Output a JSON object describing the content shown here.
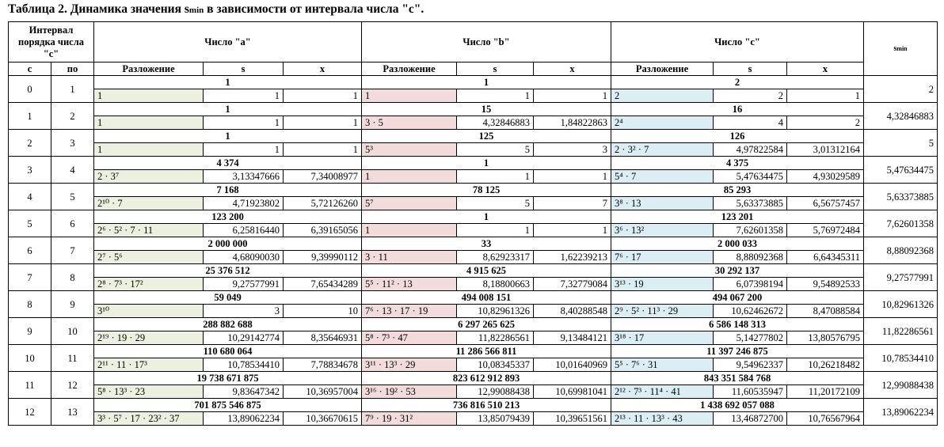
{
  "caption": {
    "main": "Таблица 2. Динамика значения s",
    "sub": "min",
    "rest": " в зависимости от интервала числа \"c\"."
  },
  "headers": {
    "interval": "Интервал порядка числа \"c\"",
    "num_a": "Число \"a\"",
    "num_b": "Число \"b\"",
    "num_c": "Число \"c\"",
    "smin_main": "s",
    "smin_sub": "min",
    "c": "c",
    "po": "по",
    "decomp": "Разложение",
    "s": "s",
    "x": "x"
  },
  "rows": [
    {
      "c": "0",
      "po": "1",
      "a": {
        "v": "1",
        "d": "1",
        "s": "1",
        "x": "1"
      },
      "b": {
        "v": "1",
        "d": "1",
        "s": "1",
        "x": "1"
      },
      "cc": {
        "v": "2",
        "d": "2",
        "s": "2",
        "x": "1"
      },
      "smin": "2"
    },
    {
      "c": "1",
      "po": "2",
      "a": {
        "v": "1",
        "d": "1",
        "s": "1",
        "x": "1"
      },
      "b": {
        "v": "15",
        "d": "3 · 5",
        "s": "4,32846883",
        "x": "1,84822863"
      },
      "cc": {
        "v": "16",
        "d": "2⁴",
        "s": "4",
        "x": "2"
      },
      "smin": "4,32846883"
    },
    {
      "c": "2",
      "po": "3",
      "a": {
        "v": "1",
        "d": "1",
        "s": "1",
        "x": "1"
      },
      "b": {
        "v": "125",
        "d": "5³",
        "s": "5",
        "x": "3"
      },
      "cc": {
        "v": "126",
        "d": "2 · 3² · 7",
        "s": "4,97822584",
        "x": "3,01312164"
      },
      "smin": "5"
    },
    {
      "c": "3",
      "po": "4",
      "a": {
        "v": "4 374",
        "d": "2 · 3⁷",
        "s": "3,13347666",
        "x": "7,34008977"
      },
      "b": {
        "v": "1",
        "d": "1",
        "s": "1",
        "x": "1"
      },
      "cc": {
        "v": "4 375",
        "d": "5⁴ · 7",
        "s": "5,47634475",
        "x": "4,93029589"
      },
      "smin": "5,47634475"
    },
    {
      "c": "4",
      "po": "5",
      "a": {
        "v": "7 168",
        "d": "2¹⁰ · 7",
        "s": "4,71923802",
        "x": "5,72126260"
      },
      "b": {
        "v": "78 125",
        "d": "5⁷",
        "s": "5",
        "x": "7"
      },
      "cc": {
        "v": "85 293",
        "d": "3⁸ · 13",
        "s": "5,63373885",
        "x": "6,56757457"
      },
      "smin": "5,63373885"
    },
    {
      "c": "5",
      "po": "6",
      "a": {
        "v": "123 200",
        "d": "2⁶ · 5² · 7 · 11",
        "s": "6,25816440",
        "x": "6,39165056"
      },
      "b": {
        "v": "1",
        "d": "1",
        "s": "1",
        "x": "1"
      },
      "cc": {
        "v": "123 201",
        "d": "3⁶ · 13²",
        "s": "7,62601358",
        "x": "5,76972484"
      },
      "smin": "7,62601358"
    },
    {
      "c": "6",
      "po": "7",
      "a": {
        "v": "2 000 000",
        "d": "2⁷ · 5⁶",
        "s": "4,68090030",
        "x": "9,39990112"
      },
      "b": {
        "v": "33",
        "d": "3 · 11",
        "s": "8,62923317",
        "x": "1,62239213"
      },
      "cc": {
        "v": "2 000 033",
        "d": "7⁶ · 17",
        "s": "8,88092368",
        "x": "6,64345311"
      },
      "smin": "8,88092368"
    },
    {
      "c": "7",
      "po": "8",
      "a": {
        "v": "25 376 512",
        "d": "2⁸ · 7³ · 17²",
        "s": "9,27577991",
        "x": "7,65434289"
      },
      "b": {
        "v": "4 915 625",
        "d": "5⁵ · 11² · 13",
        "s": "8,18800663",
        "x": "7,32779084"
      },
      "cc": {
        "v": "30 292 137",
        "d": "3¹³ · 19",
        "s": "6,07398194",
        "x": "9,54892533"
      },
      "smin": "9,27577991"
    },
    {
      "c": "8",
      "po": "9",
      "a": {
        "v": "59 049",
        "d": "3¹⁰",
        "s": "3",
        "x": "10"
      },
      "b": {
        "v": "494 008 151",
        "d": "7⁶ · 13 · 17 · 19",
        "s": "10,82961326",
        "x": "8,40288548"
      },
      "cc": {
        "v": "494 067 200",
        "d": "2⁹ · 5² · 11³ · 29",
        "s": "10,62462672",
        "x": "8,47088584"
      },
      "smin": "10,82961326"
    },
    {
      "c": "9",
      "po": "10",
      "a": {
        "v": "288 882 688",
        "d": "2¹⁹ · 19 · 29",
        "s": "10,29142774",
        "x": "8,35646931"
      },
      "b": {
        "v": "6 297 265 625",
        "d": "5⁸ · 7³ · 47",
        "s": "11,82286561",
        "x": "9,13484121"
      },
      "cc": {
        "v": "6 586 148 313",
        "d": "3¹⁸ · 17",
        "s": "5,14277802",
        "x": "13,80576795"
      },
      "smin": "11,82286561"
    },
    {
      "c": "10",
      "po": "11",
      "a": {
        "v": "110 680 064",
        "d": "2¹¹ · 11 · 17³",
        "s": "10,78534410",
        "x": "7,78834678"
      },
      "b": {
        "v": "11 286 566 811",
        "d": "3¹¹ · 13³ · 29",
        "s": "10,08345337",
        "x": "10,01640969"
      },
      "cc": {
        "v": "11 397 246 875",
        "d": "5⁵ · 7⁶ · 31",
        "s": "9,54962337",
        "x": "10,26218482"
      },
      "smin": "10,78534410"
    },
    {
      "c": "11",
      "po": "12",
      "a": {
        "v": "19 738 671 875",
        "d": "5⁸ · 13³ · 23",
        "s": "9,83647342",
        "x": "10,36957004"
      },
      "b": {
        "v": "823 612 912 893",
        "d": "3¹⁶ · 19² · 53",
        "s": "12,99088438",
        "x": "10,69981041"
      },
      "cc": {
        "v": "843 351 584 768",
        "d": "2¹² · 7³ · 11⁴ · 41",
        "s": "11,60535947",
        "x": "11,20172109"
      },
      "smin": "12,99088438"
    },
    {
      "c": "12",
      "po": "13",
      "a": {
        "v": "701 875 546 875",
        "d": "3³ · 5⁷ · 17 · 23² · 37",
        "s": "13,89062234",
        "x": "10,36670615"
      },
      "b": {
        "v": "736 816 510 213",
        "d": "7⁹ · 19 · 31²",
        "s": "13,85079439",
        "x": "10,39651561"
      },
      "cc": {
        "v": "1 438 692 057 088",
        "d": "2¹³ · 11 · 13³ · 43",
        "s": "13,46872700",
        "x": "10,76567964"
      },
      "smin": "13,89062234"
    }
  ]
}
